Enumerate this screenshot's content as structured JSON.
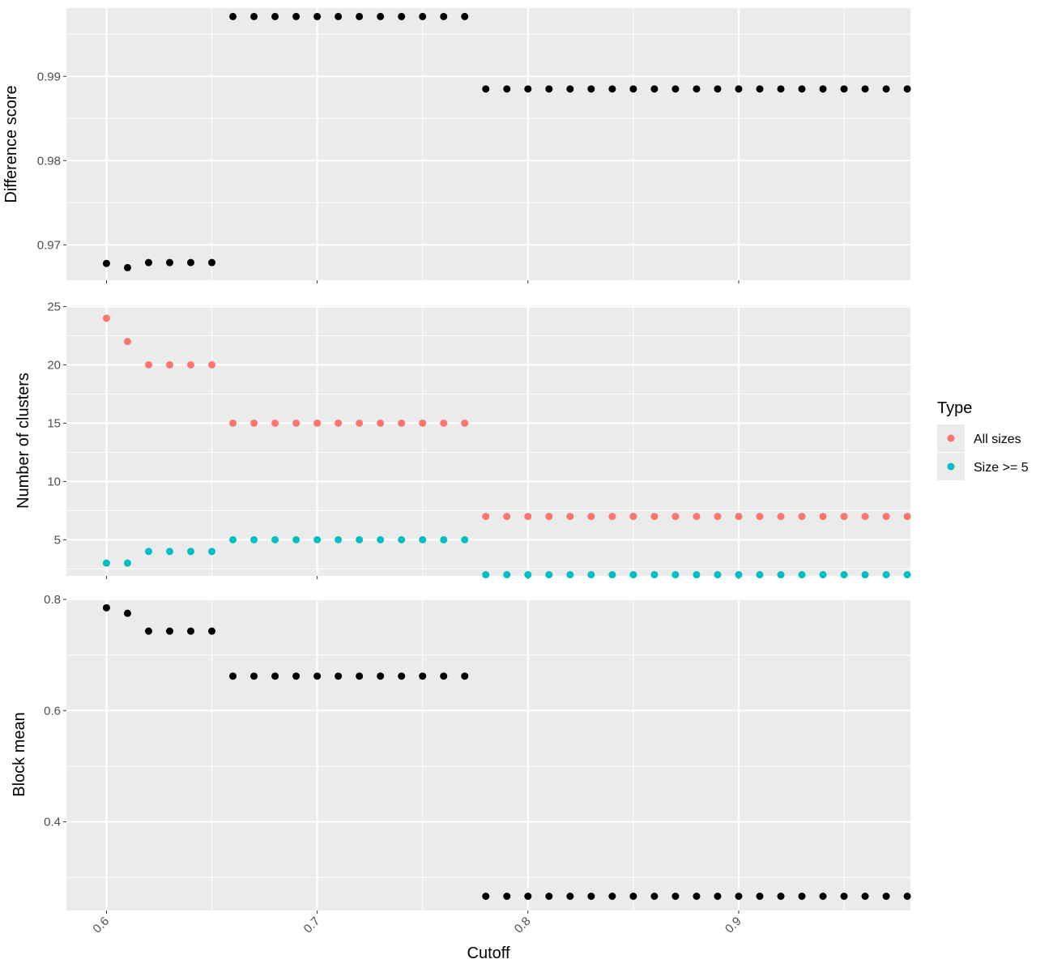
{
  "colors": {
    "panel_bg": "#EBEBEB",
    "grid_major": "#FFFFFF",
    "point_black": "#000000",
    "all_sizes": "#F8766D",
    "size5": "#00BFC4",
    "tick_text": "#4D4D4D"
  },
  "chart_data": {
    "type": "scatter",
    "xlabel": "Cutoff",
    "x_ticks": [
      "0.6",
      "0.7",
      "0.8",
      "0.9"
    ],
    "x_tick_values": [
      0.6,
      0.7,
      0.8,
      0.9
    ],
    "xlim": [
      0.581,
      0.9815
    ],
    "x": [
      0.6,
      0.61,
      0.62,
      0.63,
      0.64,
      0.65,
      0.66,
      0.67,
      0.68,
      0.69,
      0.7,
      0.71,
      0.72,
      0.73,
      0.74,
      0.75,
      0.76,
      0.77,
      0.78,
      0.79,
      0.8,
      0.81,
      0.82,
      0.83,
      0.84,
      0.85,
      0.86,
      0.87,
      0.88,
      0.89,
      0.9,
      0.91,
      0.92,
      0.93,
      0.94,
      0.95,
      0.96,
      0.97,
      0.98
    ],
    "legend": {
      "title": "Type",
      "items": [
        {
          "label": "All sizes",
          "color": "#F8766D"
        },
        {
          "label": "Size >= 5",
          "color": "#00BFC4"
        }
      ],
      "position": "right"
    },
    "panels": [
      {
        "ylabel": "Difference score",
        "ylim": [
          0.9658,
          0.9981
        ],
        "y_ticks": [
          "0.97",
          "0.98",
          "0.99"
        ],
        "y_tick_values": [
          0.97,
          0.98,
          0.99
        ],
        "y_minor": [
          0.975,
          0.985,
          0.995
        ],
        "series": [
          {
            "color": "#000000",
            "values": [
              0.9678,
              0.9673,
              0.9679,
              0.9679,
              0.9679,
              0.9679,
              0.9971,
              0.9971,
              0.9971,
              0.9971,
              0.9971,
              0.9971,
              0.9971,
              0.9971,
              0.9971,
              0.9971,
              0.9971,
              0.9971,
              0.9885,
              0.9885,
              0.9885,
              0.9885,
              0.9885,
              0.9885,
              0.9885,
              0.9885,
              0.9885,
              0.9885,
              0.9885,
              0.9885,
              0.9885,
              0.9885,
              0.9885,
              0.9885,
              0.9885,
              0.9885,
              0.9885,
              0.9885,
              0.9885
            ]
          }
        ]
      },
      {
        "ylabel": "Number of clusters",
        "ylim": [
          1.9,
          25.1
        ],
        "y_ticks": [
          "5",
          "10",
          "15",
          "20",
          "25"
        ],
        "y_tick_values": [
          5,
          10,
          15,
          20,
          25
        ],
        "y_minor": [
          2.5,
          7.5,
          12.5,
          17.5,
          22.5
        ],
        "series": [
          {
            "name": "All sizes",
            "color": "#F8766D",
            "values": [
              24,
              22,
              20,
              20,
              20,
              20,
              15,
              15,
              15,
              15,
              15,
              15,
              15,
              15,
              15,
              15,
              15,
              15,
              7,
              7,
              7,
              7,
              7,
              7,
              7,
              7,
              7,
              7,
              7,
              7,
              7,
              7,
              7,
              7,
              7,
              7,
              7,
              7,
              7
            ]
          },
          {
            "name": "Size >= 5",
            "color": "#00BFC4",
            "values": [
              3,
              3,
              4,
              4,
              4,
              4,
              5,
              5,
              5,
              5,
              5,
              5,
              5,
              5,
              5,
              5,
              5,
              5,
              2,
              2,
              2,
              2,
              2,
              2,
              2,
              2,
              2,
              2,
              2,
              2,
              2,
              2,
              2,
              2,
              2,
              2,
              2,
              2,
              2
            ]
          }
        ]
      },
      {
        "ylabel": "Block mean",
        "ylim": [
          0.2405,
          0.8015
        ],
        "y_ticks": [
          "0.4",
          "0.6",
          "0.8"
        ],
        "y_tick_values": [
          0.4,
          0.6,
          0.8
        ],
        "y_minor": [
          0.3,
          0.5,
          0.7
        ],
        "series": [
          {
            "color": "#000000",
            "values": [
              0.785,
              0.775,
              0.743,
              0.743,
              0.743,
              0.743,
              0.662,
              0.662,
              0.662,
              0.662,
              0.662,
              0.662,
              0.662,
              0.662,
              0.662,
              0.662,
              0.662,
              0.662,
              0.266,
              0.266,
              0.266,
              0.266,
              0.266,
              0.266,
              0.266,
              0.266,
              0.266,
              0.266,
              0.266,
              0.266,
              0.266,
              0.266,
              0.266,
              0.266,
              0.266,
              0.266,
              0.266,
              0.266,
              0.266
            ]
          }
        ]
      }
    ]
  }
}
